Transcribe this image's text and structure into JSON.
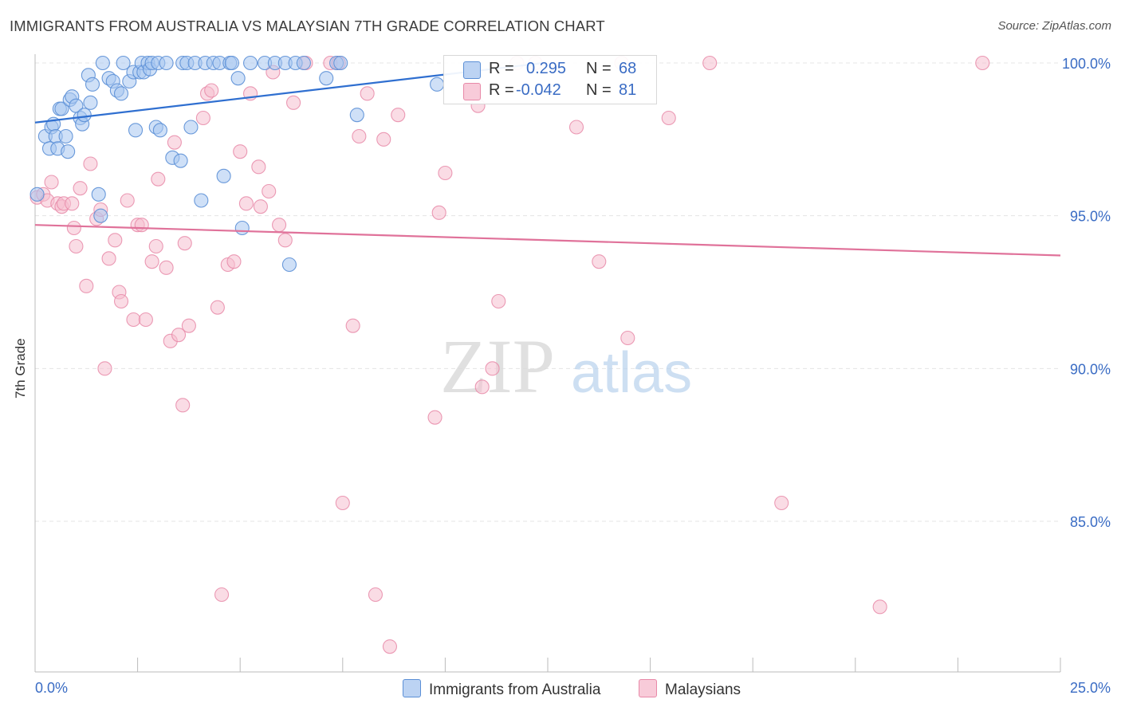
{
  "header": {
    "title": "IMMIGRANTS FROM AUSTRALIA VS MALAYSIAN 7TH GRADE CORRELATION CHART",
    "source": "Source: ZipAtlas.com"
  },
  "watermark": {
    "zip": "ZIP",
    "atlas": "atlas"
  },
  "colors": {
    "blue_fill": "#a8c6f0",
    "blue_stroke": "#5b8fd6",
    "blue_line": "#2f6fd0",
    "pink_fill": "#f6bfd0",
    "pink_stroke": "#e889a8",
    "pink_line": "#e0729a",
    "tick_text": "#3a6cc4"
  },
  "legend": {
    "r_label": "R =",
    "n_label": "N =",
    "series": [
      {
        "r": "0.295",
        "n": "68"
      },
      {
        "r": "-0.042",
        "n": "81"
      }
    ]
  },
  "chart_data": {
    "type": "scatter",
    "title": "IMMIGRANTS FROM AUSTRALIA VS MALAYSIAN 7TH GRADE CORRELATION CHART",
    "xlabel": "",
    "ylabel": "7th Grade",
    "xlim": [
      0,
      25
    ],
    "ylim": [
      80.5,
      100.5
    ],
    "x_tick_labels": [
      "0.0%",
      "25.0%"
    ],
    "y_ticks": [
      85,
      90,
      95,
      100
    ],
    "y_tick_labels": [
      "85.0%",
      "90.0%",
      "95.0%",
      "100.0%"
    ],
    "grid": true,
    "series": [
      {
        "name": "Immigrants from Australia",
        "color": "#5b8fd6",
        "trend": {
          "x": [
            0,
            12.4
          ],
          "y": [
            98.05,
            100.0
          ]
        },
        "points": [
          [
            0.05,
            95.7
          ],
          [
            0.25,
            97.6
          ],
          [
            0.35,
            97.2
          ],
          [
            0.4,
            97.9
          ],
          [
            0.45,
            98.0
          ],
          [
            0.5,
            97.6
          ],
          [
            0.55,
            97.2
          ],
          [
            0.6,
            98.5
          ],
          [
            0.65,
            98.5
          ],
          [
            0.75,
            97.6
          ],
          [
            0.8,
            97.1
          ],
          [
            0.85,
            98.8
          ],
          [
            0.9,
            98.9
          ],
          [
            1.0,
            98.6
          ],
          [
            1.1,
            98.2
          ],
          [
            1.15,
            98.0
          ],
          [
            1.2,
            98.3
          ],
          [
            1.3,
            99.6
          ],
          [
            1.35,
            98.7
          ],
          [
            1.4,
            99.3
          ],
          [
            1.55,
            95.7
          ],
          [
            1.6,
            95.0
          ],
          [
            1.65,
            100.0
          ],
          [
            1.8,
            99.5
          ],
          [
            1.9,
            99.4
          ],
          [
            2.0,
            99.1
          ],
          [
            2.1,
            99.0
          ],
          [
            2.15,
            100.0
          ],
          [
            2.3,
            99.4
          ],
          [
            2.4,
            99.7
          ],
          [
            2.45,
            97.8
          ],
          [
            2.55,
            99.7
          ],
          [
            2.6,
            100.0
          ],
          [
            2.65,
            99.7
          ],
          [
            2.75,
            100.0
          ],
          [
            2.8,
            99.8
          ],
          [
            2.85,
            100.0
          ],
          [
            2.95,
            97.9
          ],
          [
            3.0,
            100.0
          ],
          [
            3.05,
            97.8
          ],
          [
            3.2,
            100.0
          ],
          [
            3.35,
            96.9
          ],
          [
            3.55,
            96.8
          ],
          [
            3.6,
            100.0
          ],
          [
            3.7,
            100.0
          ],
          [
            3.8,
            97.9
          ],
          [
            3.9,
            100.0
          ],
          [
            4.05,
            95.5
          ],
          [
            4.15,
            100.0
          ],
          [
            4.35,
            100.0
          ],
          [
            4.5,
            100.0
          ],
          [
            4.6,
            96.3
          ],
          [
            4.75,
            100.0
          ],
          [
            4.8,
            100.0
          ],
          [
            4.95,
            99.5
          ],
          [
            5.05,
            94.6
          ],
          [
            5.25,
            100.0
          ],
          [
            5.6,
            100.0
          ],
          [
            5.85,
            100.0
          ],
          [
            6.1,
            100.0
          ],
          [
            6.2,
            93.4
          ],
          [
            6.35,
            100.0
          ],
          [
            6.55,
            100.0
          ],
          [
            7.1,
            99.5
          ],
          [
            7.35,
            100.0
          ],
          [
            7.45,
            100.0
          ],
          [
            7.85,
            98.3
          ],
          [
            9.8,
            99.3
          ]
        ]
      },
      {
        "name": "Malaysians",
        "color": "#e889a8",
        "trend": {
          "x": [
            0,
            25
          ],
          "y": [
            94.7,
            93.7
          ]
        },
        "points": [
          [
            0.05,
            95.6
          ],
          [
            0.2,
            95.7
          ],
          [
            0.3,
            95.5
          ],
          [
            0.4,
            96.1
          ],
          [
            0.55,
            95.4
          ],
          [
            0.65,
            95.3
          ],
          [
            0.7,
            95.4
          ],
          [
            0.9,
            95.4
          ],
          [
            0.95,
            94.6
          ],
          [
            1.0,
            94.0
          ],
          [
            1.1,
            95.9
          ],
          [
            1.25,
            92.7
          ],
          [
            1.35,
            96.7
          ],
          [
            1.5,
            94.9
          ],
          [
            1.6,
            95.2
          ],
          [
            1.7,
            90.0
          ],
          [
            1.8,
            93.6
          ],
          [
            1.95,
            94.2
          ],
          [
            2.05,
            92.5
          ],
          [
            2.1,
            92.2
          ],
          [
            2.25,
            95.5
          ],
          [
            2.4,
            91.6
          ],
          [
            2.5,
            94.7
          ],
          [
            2.6,
            94.7
          ],
          [
            2.7,
            91.6
          ],
          [
            2.85,
            93.5
          ],
          [
            2.95,
            94.0
          ],
          [
            3.0,
            96.2
          ],
          [
            3.2,
            93.3
          ],
          [
            3.3,
            90.9
          ],
          [
            3.4,
            97.4
          ],
          [
            3.5,
            91.1
          ],
          [
            3.6,
            88.8
          ],
          [
            3.65,
            94.1
          ],
          [
            3.75,
            91.4
          ],
          [
            4.1,
            98.2
          ],
          [
            4.2,
            99.0
          ],
          [
            4.3,
            99.1
          ],
          [
            4.45,
            92.0
          ],
          [
            4.55,
            82.6
          ],
          [
            4.7,
            93.4
          ],
          [
            4.85,
            93.5
          ],
          [
            5.0,
            97.1
          ],
          [
            5.15,
            95.4
          ],
          [
            5.25,
            99.0
          ],
          [
            5.45,
            96.6
          ],
          [
            5.5,
            95.3
          ],
          [
            5.7,
            95.8
          ],
          [
            5.8,
            99.7
          ],
          [
            5.95,
            94.7
          ],
          [
            6.1,
            94.2
          ],
          [
            6.3,
            98.7
          ],
          [
            6.6,
            100.0
          ],
          [
            7.2,
            100.0
          ],
          [
            7.4,
            100.0
          ],
          [
            7.5,
            85.6
          ],
          [
            7.75,
            91.4
          ],
          [
            7.9,
            97.6
          ],
          [
            8.1,
            99.0
          ],
          [
            8.3,
            82.6
          ],
          [
            8.5,
            97.5
          ],
          [
            8.65,
            80.9
          ],
          [
            8.85,
            98.3
          ],
          [
            9.75,
            88.4
          ],
          [
            9.85,
            95.1
          ],
          [
            10.0,
            96.4
          ],
          [
            10.8,
            98.6
          ],
          [
            10.9,
            89.4
          ],
          [
            11.15,
            90.0
          ],
          [
            11.3,
            92.2
          ],
          [
            11.75,
            100.0
          ],
          [
            12.2,
            100.0
          ],
          [
            13.2,
            97.9
          ],
          [
            13.75,
            93.5
          ],
          [
            14.3,
            100.0
          ],
          [
            14.45,
            91.0
          ],
          [
            15.45,
            98.2
          ],
          [
            16.45,
            100.0
          ],
          [
            18.2,
            85.6
          ],
          [
            20.6,
            82.2
          ],
          [
            23.1,
            100.0
          ]
        ]
      }
    ]
  }
}
